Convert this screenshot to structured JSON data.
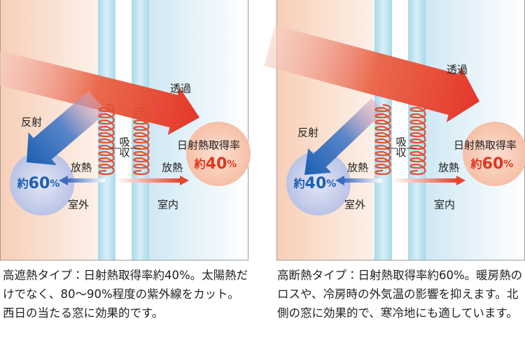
{
  "panels": [
    {
      "transmit": "透過",
      "reflect": "反射",
      "absorb": "吸収",
      "release_out": "放熱",
      "release_in": "放熱",
      "outdoor": "室外",
      "indoor": "室内",
      "gain_label": "日射熱取得率",
      "gain": {
        "prefix": "約",
        "number": "40",
        "unit": "%"
      },
      "reflect_rate": {
        "prefix": "約",
        "number": "60",
        "unit": "%"
      },
      "caption": "高遮熱タイプ：日射熱取得率約40%。太陽熱だけでなく、80〜90%程度の紫外線をカット。西日の当たる窓に効果的です。"
    },
    {
      "transmit": "透過",
      "reflect": "反射",
      "absorb": "吸収",
      "release_out": "放熱",
      "release_in": "放熱",
      "outdoor": "室外",
      "indoor": "室内",
      "gain_label": "日射熱取得率",
      "gain": {
        "prefix": "約",
        "number": "60",
        "unit": "%"
      },
      "reflect_rate": {
        "prefix": "約",
        "number": "40",
        "unit": "%"
      },
      "caption": "高断熱タイプ：日射熱取得率約60%。暖房熱のロスや、冷房時の外気温の影響を抑えます。北側の窓に効果的で、寒冷地にも適しています。"
    }
  ]
}
